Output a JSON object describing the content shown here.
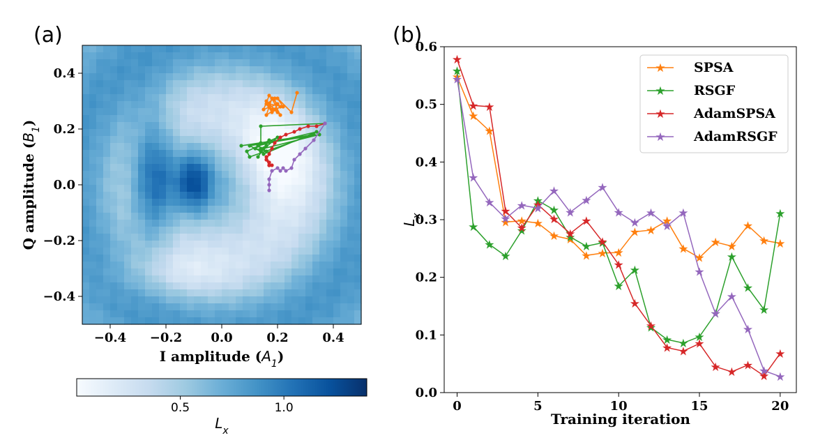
{
  "panels": {
    "a": "(a)",
    "b": "(b)"
  },
  "colors": {
    "SPSA": "#ff7f0e",
    "RSGF": "#2ca02c",
    "AdamSPSA": "#d62728",
    "AdamRSGF": "#9467bd"
  },
  "chart_data": [
    {
      "id": "a",
      "type": "heatmap",
      "xlabel_main": "I amplitude (",
      "xlabel_var": "A",
      "xlabel_sub": "1",
      "xlabel_end": ")",
      "ylabel_main": "Q amplitude (",
      "ylabel_var": "B",
      "ylabel_sub": "1",
      "ylabel_end": ")",
      "xlim": [
        -0.5,
        0.5
      ],
      "ylim": [
        -0.5,
        0.5
      ],
      "xticks": [
        "−0.4",
        "−0.2",
        "0.0",
        "0.2",
        "0.4"
      ],
      "xtick_values": [
        -0.4,
        -0.2,
        0.0,
        0.2,
        0.4
      ],
      "yticks": [
        "−0.4",
        "−0.2",
        "0.0",
        "0.2",
        "0.4"
      ],
      "ytick_values": [
        -0.4,
        -0.2,
        0.0,
        0.2,
        0.4
      ],
      "grid_size": 40,
      "colormap": "Blues",
      "colorbar": {
        "range": [
          0.0,
          1.4
        ],
        "ticks": [
          "0.5",
          "1.0"
        ],
        "tick_values": [
          0.5,
          1.0
        ],
        "label_var": "L",
        "label_sub": "x"
      },
      "trajectories": [
        {
          "name": "SPSA",
          "points": [
            [
              0.27,
              0.33
            ],
            [
              0.25,
              0.26
            ],
            [
              0.2,
              0.31
            ],
            [
              0.22,
              0.28
            ],
            [
              0.17,
              0.29
            ],
            [
              0.19,
              0.27
            ],
            [
              0.16,
              0.25
            ],
            [
              0.18,
              0.31
            ],
            [
              0.21,
              0.25
            ],
            [
              0.16,
              0.3
            ],
            [
              0.19,
              0.27
            ],
            [
              0.2,
              0.29
            ],
            [
              0.15,
              0.27
            ],
            [
              0.17,
              0.32
            ],
            [
              0.21,
              0.28
            ],
            [
              0.18,
              0.26
            ],
            [
              0.16,
              0.29
            ],
            [
              0.19,
              0.31
            ],
            [
              0.2,
              0.26
            ],
            [
              0.17,
              0.28
            ],
            [
              0.18,
              0.27
            ]
          ]
        },
        {
          "name": "RSGF",
          "points": [
            [
              0.37,
              0.22
            ],
            [
              0.14,
              0.21
            ],
            [
              0.14,
              0.15
            ],
            [
              0.07,
              0.14
            ],
            [
              0.33,
              0.18
            ],
            [
              0.1,
              0.1
            ],
            [
              0.09,
              0.12
            ],
            [
              0.2,
              0.17
            ],
            [
              0.14,
              0.12
            ],
            [
              0.1,
              0.14
            ],
            [
              0.35,
              0.18
            ],
            [
              0.15,
              0.13
            ],
            [
              0.13,
              0.1
            ],
            [
              0.17,
              0.16
            ],
            [
              0.12,
              0.13
            ],
            [
              0.16,
              0.12
            ],
            [
              0.13,
              0.14
            ],
            [
              0.34,
              0.19
            ],
            [
              0.15,
              0.11
            ],
            [
              0.14,
              0.13
            ],
            [
              0.16,
              0.14
            ]
          ]
        },
        {
          "name": "AdamSPSA",
          "points": [
            [
              0.37,
              0.22
            ],
            [
              0.34,
              0.21
            ],
            [
              0.31,
              0.21
            ],
            [
              0.28,
              0.2
            ],
            [
              0.26,
              0.19
            ],
            [
              0.23,
              0.18
            ],
            [
              0.21,
              0.17
            ],
            [
              0.19,
              0.15
            ],
            [
              0.18,
              0.13
            ],
            [
              0.17,
              0.11
            ],
            [
              0.16,
              0.09
            ],
            [
              0.17,
              0.08
            ],
            [
              0.16,
              0.1
            ],
            [
              0.17,
              0.08
            ],
            [
              0.17,
              0.07
            ],
            [
              0.16,
              0.09
            ],
            [
              0.17,
              0.07
            ],
            [
              0.17,
              0.08
            ],
            [
              0.17,
              0.07
            ],
            [
              0.18,
              0.07
            ],
            [
              0.17,
              0.07
            ]
          ]
        },
        {
          "name": "AdamRSGF",
          "points": [
            [
              0.37,
              0.22
            ],
            [
              0.33,
              0.16
            ],
            [
              0.3,
              0.13
            ],
            [
              0.28,
              0.11
            ],
            [
              0.26,
              0.09
            ],
            [
              0.25,
              0.06
            ],
            [
              0.23,
              0.05
            ],
            [
              0.22,
              0.06
            ],
            [
              0.21,
              0.05
            ],
            [
              0.2,
              0.06
            ],
            [
              0.18,
              0.05
            ],
            [
              0.17,
              0.02
            ],
            [
              0.17,
              0.0
            ],
            [
              0.17,
              -0.02
            ]
          ]
        }
      ]
    },
    {
      "id": "b",
      "type": "line",
      "xlabel": "Training iteration",
      "ylabel_var": "L",
      "ylabel_sub": "x",
      "xlim": [
        -0.8,
        21.0
      ],
      "ylim": [
        0.0,
        0.6
      ],
      "xticks": [
        "0",
        "5",
        "10",
        "15",
        "20"
      ],
      "xtick_values": [
        0,
        5,
        10,
        15,
        20
      ],
      "yticks": [
        "0.0",
        "0.1",
        "0.2",
        "0.3",
        "0.4",
        "0.5",
        "0.6"
      ],
      "ytick_values": [
        0.0,
        0.1,
        0.2,
        0.3,
        0.4,
        0.5,
        0.6
      ],
      "legend_position": "top-right",
      "x": [
        0,
        1,
        2,
        3,
        4,
        5,
        6,
        7,
        8,
        9,
        10,
        11,
        12,
        13,
        14,
        15,
        16,
        17,
        18,
        19,
        20
      ],
      "series": [
        {
          "name": "SPSA",
          "values": [
            0.548,
            0.48,
            0.454,
            0.296,
            0.298,
            0.294,
            0.272,
            0.266,
            0.238,
            0.242,
            0.243,
            0.279,
            0.282,
            0.298,
            0.25,
            0.234,
            0.261,
            0.254,
            0.29,
            0.264,
            0.259
          ]
        },
        {
          "name": "RSGF",
          "values": [
            0.558,
            0.288,
            0.257,
            0.237,
            0.281,
            0.333,
            0.317,
            0.27,
            0.254,
            0.26,
            0.185,
            0.213,
            0.113,
            0.092,
            0.086,
            0.097,
            0.137,
            0.236,
            0.182,
            0.144,
            0.311
          ]
        },
        {
          "name": "AdamSPSA",
          "values": [
            0.578,
            0.498,
            0.496,
            0.315,
            0.286,
            0.326,
            0.301,
            0.276,
            0.298,
            0.262,
            0.222,
            0.155,
            0.116,
            0.078,
            0.072,
            0.085,
            0.045,
            0.036,
            0.048,
            0.029,
            0.068
          ]
        },
        {
          "name": "AdamRSGF",
          "values": [
            0.544,
            0.373,
            0.33,
            0.302,
            0.325,
            0.32,
            0.35,
            0.313,
            0.334,
            0.356,
            0.313,
            0.295,
            0.312,
            0.289,
            0.312,
            0.21,
            0.137,
            0.167,
            0.11,
            0.038,
            0.028
          ]
        }
      ]
    }
  ]
}
